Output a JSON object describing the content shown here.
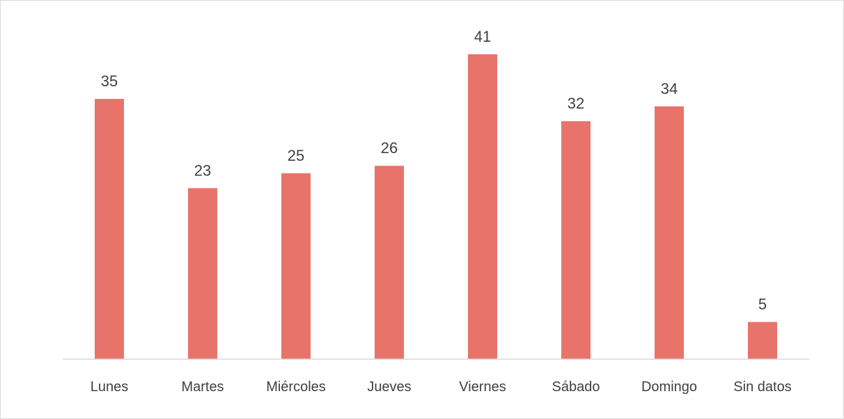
{
  "chart_data": {
    "type": "bar",
    "title": "",
    "xlabel": "",
    "ylabel": "",
    "categories": [
      "Lunes",
      "Martes",
      "Miércoles",
      "Jueves",
      "Viernes",
      "Sábado",
      "Domingo",
      "Sin datos"
    ],
    "values": [
      35,
      23,
      25,
      26,
      41,
      32,
      34,
      5
    ],
    "ylim": [
      0,
      41
    ],
    "grid": false,
    "legend": "none",
    "data_labels": true,
    "bar_color": "#e8736a"
  }
}
